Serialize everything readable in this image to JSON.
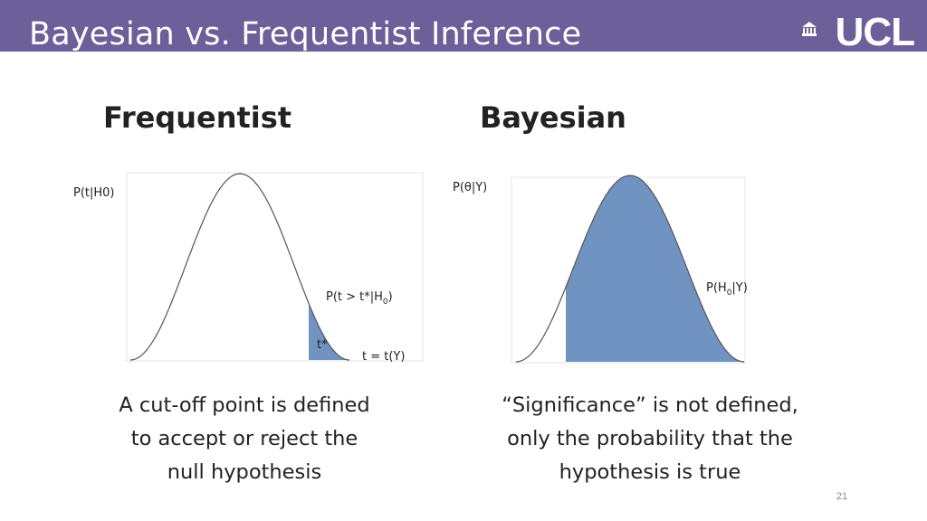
{
  "header": {
    "title": "Bayesian vs. Frequentist Inference",
    "logo_text": "UCL",
    "background_color": "#6c5f9a"
  },
  "columns": {
    "left": {
      "heading": "Frequentist",
      "y_label": "P(t|H0)",
      "tail_label": "P(t > t*|H",
      "tail_label_sub": "0",
      "tail_label_end": ")",
      "cutoff_label": "t*",
      "stat_label": "t = t(Y)",
      "caption": [
        "A cut-off point is defined",
        "to accept or reject the",
        "null hypothesis"
      ]
    },
    "right": {
      "heading": "Bayesian",
      "y_label": "P(θ|Y)",
      "area_label": "P(H",
      "area_label_sub": "0",
      "area_label_end": "|Y)",
      "caption": [
        "“Significance” is not defined,",
        "only the probability that the",
        "hypothesis is true"
      ]
    }
  },
  "fill_color": "#7093c1",
  "page_number": "21"
}
